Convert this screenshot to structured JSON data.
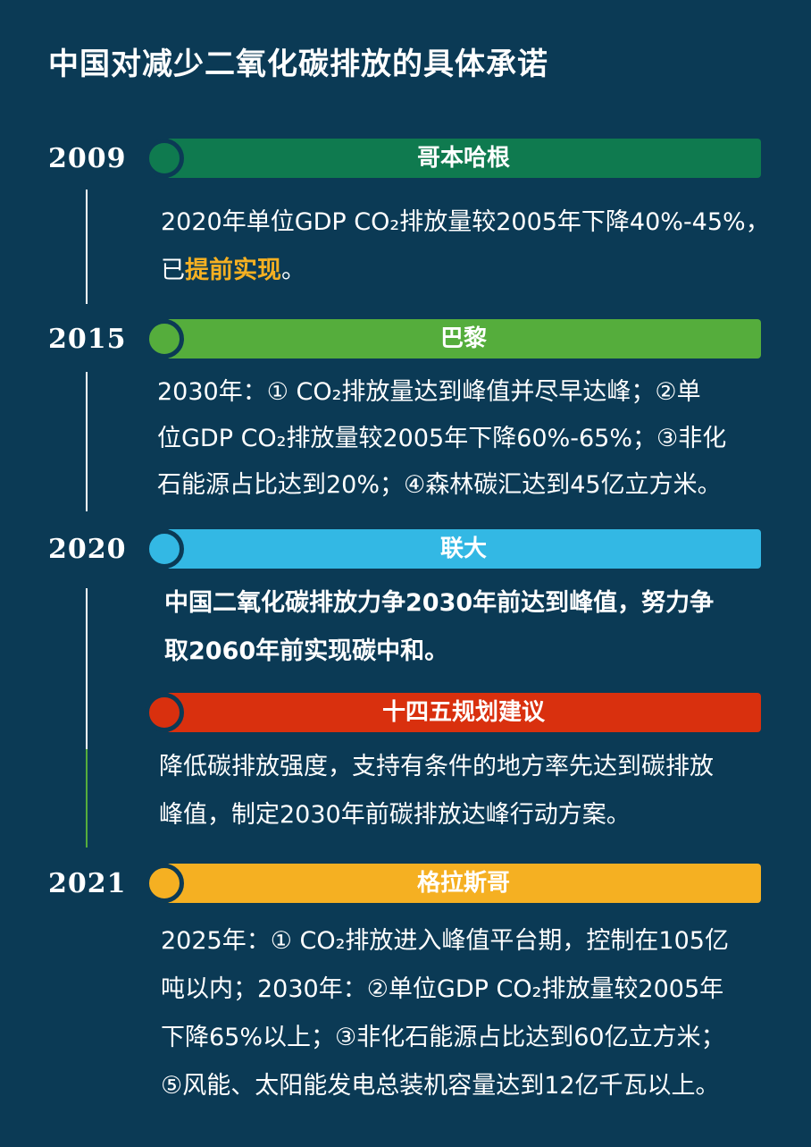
{
  "title": "中国对减少二氧化碳排放的具体承诺",
  "colors": {
    "background": "#0b3a55",
    "copenhagen": "#0f7a4f",
    "paris": "#55ad3c",
    "un": "#33b8e4",
    "fyp": "#d9300e",
    "glasgow": "#f5b022"
  },
  "items": [
    {
      "year": "2009",
      "label": "哥本哈根",
      "lines": [
        "2020年单位GDP CO₂排放量较2005年下降40%-45%，"
      ],
      "line2_prefix": "已",
      "line2_highlight": "提前实现",
      "line2_suffix": "。"
    },
    {
      "year": "2015",
      "label": "巴黎",
      "lines": [
        "2030年：① CO₂排放量达到峰值并尽早达峰；②单",
        "位GDP CO₂排放量较2005年下降60%-65%；③非化",
        "石能源占比达到20%；④森林碳汇达到45亿立方米。"
      ]
    },
    {
      "year": "2020",
      "label": "联大",
      "lines": [
        "中国二氧化碳排放力争2030年前达到峰值，努力争",
        "取2060年前实现碳中和。"
      ]
    },
    {
      "label": "十四五规划建议",
      "lines": [
        "降低碳排放强度，支持有条件的地方率先达到碳排放",
        "峰值，制定2030年前碳排放达峰行动方案。"
      ]
    },
    {
      "year": "2021",
      "label": "格拉斯哥",
      "lines": [
        "2025年：① CO₂排放进入峰值平台期，控制在105亿",
        "吨以内；2030年：②单位GDP CO₂排放量较2005年",
        "下降65%以上；③非化石能源占比达到60亿立方米；",
        "⑤风能、太阳能发电总装机容量达到12亿千瓦以上。"
      ]
    }
  ]
}
